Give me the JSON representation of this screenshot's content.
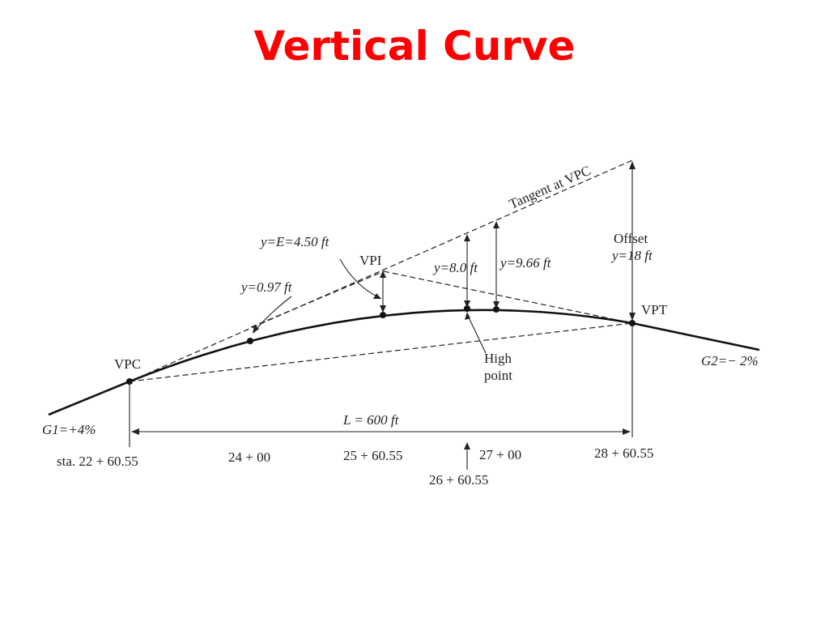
{
  "title": "Vertical Curve",
  "colors": {
    "title": "#ff0000",
    "ink": "#111111"
  },
  "labels": {
    "tangent": "Tangent at VPC",
    "offset_line1": "Offset",
    "offset_line2": "y=18 ft",
    "y_e": "y=E=4.50 ft",
    "vpi": "VPI",
    "y_097": "y=0.97 ft",
    "y_80": "y=8.0 ft",
    "y_966": "y=9.66 ft",
    "vpt": "VPT",
    "vpc": "VPC",
    "g2": "G2=− 2%",
    "high_point_line1": "High",
    "high_point_line2": "point",
    "g1": "G1=+4%",
    "length": "L = 600 ft"
  },
  "stations": {
    "s1": "sta. 22 + 60.55",
    "s2": "24 + 00",
    "s3": "25 + 60.55",
    "s4": "27 + 00",
    "s5": "28 + 60.55",
    "s6": "26 + 60.55"
  }
}
